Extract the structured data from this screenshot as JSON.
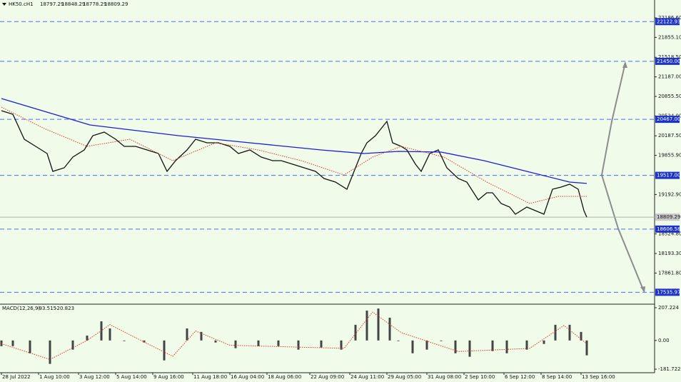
{
  "chart_data": {
    "type": "line",
    "symbol": "HK50.cH1",
    "ohlc": [
      18797.29,
      18848.29,
      18778.29,
      18809.29
    ],
    "xlim": [
      -0.5,
      228.75
    ],
    "xticks": [
      {
        "value": 0,
        "label": "28 Jul 2022"
      },
      {
        "value": 13,
        "label": "1 Aug 10:00"
      },
      {
        "value": 27,
        "label": "3 Aug 12:00"
      },
      {
        "value": 40,
        "label": "5 Aug 14:00"
      },
      {
        "value": 53,
        "label": "9 Aug 16:00"
      },
      {
        "value": 67,
        "label": "11 Aug 18:00"
      },
      {
        "value": 80,
        "label": "16 Aug 04:00"
      },
      {
        "value": 93,
        "label": "18 Aug 06:00"
      },
      {
        "value": 108,
        "label": "22 Aug 09:00"
      },
      {
        "value": 122,
        "label": "24 Aug 11:00"
      },
      {
        "value": 135,
        "label": "29 Aug 05:00"
      },
      {
        "value": 149,
        "label": "31 Aug 08:00"
      },
      {
        "value": 162,
        "label": "2 Sep 10:00"
      },
      {
        "value": 176,
        "label": "6 Sep 12:00"
      },
      {
        "value": 189,
        "label": "8 Sep 14:00"
      },
      {
        "value": 203,
        "label": "13 Sep 16:00"
      }
    ],
    "ylim": [
      17346.5,
      22489
    ],
    "yticks": [
      {
        "value": 22186.6,
        "label": "22186.60"
      },
      {
        "value": 21855.1,
        "label": "21855.10"
      },
      {
        "value": 21518.5,
        "label": "21518.50"
      },
      {
        "value": 21187,
        "label": "21187.00"
      },
      {
        "value": 20855.5,
        "label": "20855.50"
      },
      {
        "value": 20524,
        "label": "20524.00"
      },
      {
        "value": 20187.5,
        "label": "20187.50"
      },
      {
        "value": 19855.9,
        "label": "19855.90"
      },
      {
        "value": 19192.9,
        "label": "19192.90"
      },
      {
        "value": 18524.8,
        "label": "18524.80"
      },
      {
        "value": 18193.3,
        "label": "18193.30"
      },
      {
        "value": 17861.8,
        "label": "17861.80"
      }
    ],
    "levels": [
      22122.93,
      {
        "value": 21450,
        "label": "21450.00"
      },
      {
        "value": 20467,
        "label": "20467.00"
      },
      {
        "value": 19517,
        "label": "19517.00"
      },
      18606.58,
      17535.97
    ],
    "level_color": "#4a6cf0",
    "current_price": 18809.29,
    "series": [
      {
        "color": "#111111",
        "x": [
          0,
          4,
          8,
          12,
          16,
          18,
          22,
          25,
          29,
          32,
          36,
          40,
          43,
          47,
          51,
          55,
          58,
          61,
          65,
          68,
          72,
          76,
          80,
          83,
          87,
          91,
          95,
          98,
          102,
          106,
          110,
          113,
          117,
          121,
          123,
          126,
          128,
          131,
          133,
          135,
          137,
          140,
          142,
          145,
          147,
          150,
          153,
          156,
          160,
          163,
          167,
          170,
          172,
          175,
          178,
          180,
          184,
          187,
          190,
          193,
          196,
          199,
          202,
          204,
          205
        ],
        "values": [
          20613,
          20553,
          20130,
          20009,
          19888,
          19585,
          19646,
          19827,
          19948,
          20190,
          20251,
          20130,
          20009,
          20009,
          19948,
          19888,
          19585,
          19767,
          19948,
          20130,
          20069,
          20069,
          20009,
          19888,
          19948,
          19827,
          19767,
          19767,
          19706,
          19646,
          19585,
          19464,
          19404,
          19283,
          19525,
          19888,
          20069,
          20190,
          20311,
          20432,
          20069,
          20009,
          19948,
          19706,
          19585,
          19888,
          19948,
          19646,
          19464,
          19404,
          19101,
          19222,
          19222,
          19041,
          18980,
          18859,
          18980,
          18920,
          18859,
          19283,
          19319,
          19367,
          19283,
          18920,
          18809
        ]
      },
      {
        "color": "#1c1cd8",
        "x": [
          0,
          31,
          62,
          87,
          112,
          127,
          139,
          154,
          169,
          184,
          199,
          205
        ],
        "values": [
          20819,
          20371,
          20190,
          20069,
          19948,
          19888,
          19924,
          19912,
          19767,
          19585,
          19404,
          19380
        ]
      },
      {
        "color": "#d23a2a",
        "dashed": true,
        "x": [
          0,
          15,
          30,
          45,
          60,
          75,
          90,
          105,
          120,
          130,
          140,
          155,
          170,
          185,
          195,
          205
        ],
        "values": [
          20674,
          20311,
          20009,
          20130,
          19767,
          20069,
          19948,
          19767,
          19525,
          19827,
          20009,
          19827,
          19404,
          19041,
          19162,
          19162
        ]
      }
    ],
    "macd": {
      "label": "MACD(12,26,9)",
      "readout": [
        -93.515,
        -20.823
      ],
      "ylim": [
        -204,
        225
      ],
      "yticks": [
        207.224,
        {
          "value": 0,
          "label": "0.00"
        },
        -181.722
      ],
      "histogram": {
        "color": "#444444",
        "x": [
          0,
          4,
          10,
          17,
          25,
          30,
          35,
          38,
          43,
          50,
          57,
          65,
          70,
          75,
          82,
          90,
          97,
          104,
          112,
          119,
          124,
          128,
          132,
          136,
          139,
          144,
          149,
          154,
          159,
          164,
          172,
          177,
          184,
          190,
          194,
          199,
          203,
          205
        ],
        "values": [
          -36,
          -36,
          -81,
          -148,
          -58,
          31,
          121,
          76,
          -4,
          -13,
          -126,
          76,
          54,
          -13,
          -49,
          -36,
          -36,
          -58,
          -45,
          -58,
          99,
          189,
          202,
          144,
          -4,
          -81,
          -58,
          -4,
          -81,
          -103,
          -67,
          -81,
          -58,
          -22,
          99,
          99,
          54,
          -94
        ]
      },
      "signal": {
        "color": "#d23a2a",
        "x": [
          0,
          17,
          30,
          38,
          50,
          60,
          68,
          80,
          120,
          130,
          140,
          160,
          185,
          197,
          205
        ],
        "values": [
          -20,
          -120,
          0,
          100,
          -10,
          -100,
          60,
          -30,
          -50,
          180,
          50,
          -70,
          -50,
          95,
          -20.823
        ]
      }
    }
  }
}
